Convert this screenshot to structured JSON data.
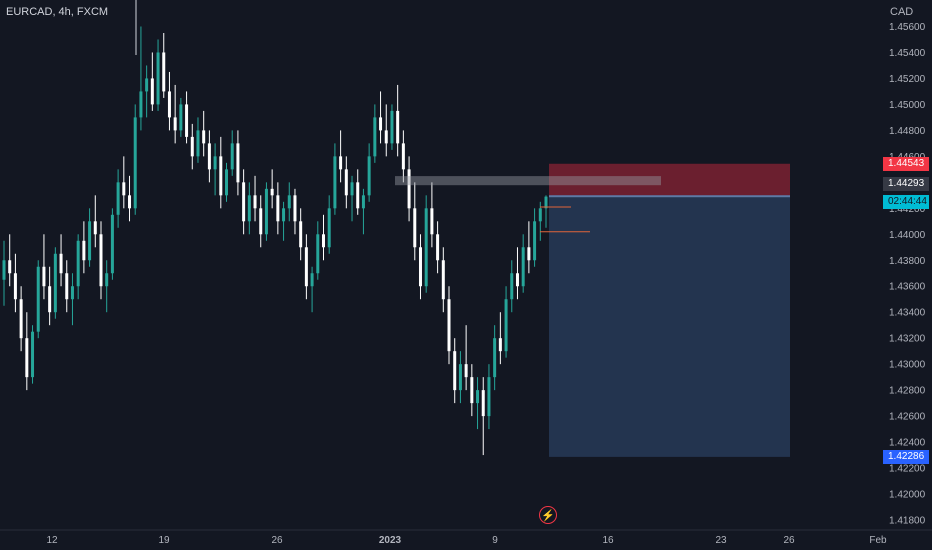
{
  "header": {
    "symbol_line": "EURCAD, 4h, FXCM",
    "currency": "CAD"
  },
  "price_axis": {
    "labels": [
      "1.45600",
      "1.45400",
      "1.45200",
      "1.45000",
      "1.44800",
      "1.44600",
      "1.44400",
      "1.44200",
      "1.44000",
      "1.43800",
      "1.43600",
      "1.43400",
      "1.43200",
      "1.43000",
      "1.42800",
      "1.42600",
      "1.42400",
      "1.42200",
      "1.42000",
      "1.41800"
    ]
  },
  "time_axis": {
    "labels": [
      "12",
      "19",
      "26",
      "2023",
      "9",
      "16",
      "23",
      "26",
      "Feb"
    ]
  },
  "price_tags": {
    "stop_loss": "1.44543",
    "current_price": "1.44293",
    "countdown": "02:44:44",
    "take_profit": "1.42286"
  },
  "alert_icon": "alert-clock-icon",
  "colors": {
    "background": "#131722",
    "up": "#26a69a",
    "down": "#ffffff",
    "stop_zone": "#7b2131",
    "target_zone": "#243652",
    "stop_tag": "#f23645",
    "price_tag": "#363a45",
    "countdown_tag": "#00bcd4",
    "target_tag": "#2962ff"
  },
  "chart_data": {
    "type": "candlestick",
    "symbol": "EURCAD",
    "timeframe": "4h",
    "ylim": [
      1.418,
      1.456
    ],
    "candles": [
      [
        1.4365,
        1.4395,
        1.4345,
        1.438
      ],
      [
        1.438,
        1.44,
        1.436,
        1.437
      ],
      [
        1.437,
        1.4385,
        1.434,
        1.435
      ],
      [
        1.435,
        1.436,
        1.431,
        1.432
      ],
      [
        1.432,
        1.434,
        1.428,
        1.429
      ],
      [
        1.429,
        1.433,
        1.4285,
        1.4325
      ],
      [
        1.4325,
        1.438,
        1.432,
        1.4375
      ],
      [
        1.4375,
        1.44,
        1.435,
        1.436
      ],
      [
        1.436,
        1.4375,
        1.433,
        1.434
      ],
      [
        1.434,
        1.439,
        1.4335,
        1.4385
      ],
      [
        1.4385,
        1.44,
        1.436,
        1.437
      ],
      [
        1.437,
        1.438,
        1.434,
        1.435
      ],
      [
        1.435,
        1.437,
        1.433,
        1.436
      ],
      [
        1.436,
        1.44,
        1.435,
        1.4395
      ],
      [
        1.4395,
        1.441,
        1.437,
        1.438
      ],
      [
        1.438,
        1.442,
        1.4375,
        1.441
      ],
      [
        1.441,
        1.443,
        1.439,
        1.44
      ],
      [
        1.44,
        1.441,
        1.435,
        1.436
      ],
      [
        1.436,
        1.438,
        1.434,
        1.437
      ],
      [
        1.437,
        1.442,
        1.4365,
        1.4415
      ],
      [
        1.4415,
        1.445,
        1.4405,
        1.444
      ],
      [
        1.444,
        1.446,
        1.442,
        1.443
      ],
      [
        1.443,
        1.4445,
        1.441,
        1.442
      ],
      [
        1.442,
        1.45,
        1.4415,
        1.449
      ],
      [
        1.449,
        1.456,
        1.448,
        1.451
      ],
      [
        1.451,
        1.453,
        1.449,
        1.452
      ],
      [
        1.452,
        1.454,
        1.4495,
        1.45
      ],
      [
        1.45,
        1.455,
        1.4495,
        1.454
      ],
      [
        1.454,
        1.4555,
        1.4505,
        1.451
      ],
      [
        1.451,
        1.4525,
        1.448,
        1.449
      ],
      [
        1.449,
        1.4515,
        1.447,
        1.448
      ],
      [
        1.448,
        1.4505,
        1.4475,
        1.45
      ],
      [
        1.45,
        1.451,
        1.447,
        1.4475
      ],
      [
        1.4475,
        1.4485,
        1.445,
        1.446
      ],
      [
        1.446,
        1.449,
        1.4455,
        1.448
      ],
      [
        1.448,
        1.4495,
        1.446,
        1.447
      ],
      [
        1.447,
        1.448,
        1.444,
        1.445
      ],
      [
        1.445,
        1.447,
        1.443,
        1.446
      ],
      [
        1.446,
        1.4475,
        1.442,
        1.443
      ],
      [
        1.443,
        1.4455,
        1.4425,
        1.445
      ],
      [
        1.445,
        1.448,
        1.4445,
        1.447
      ],
      [
        1.447,
        1.448,
        1.443,
        1.444
      ],
      [
        1.444,
        1.445,
        1.44,
        1.441
      ],
      [
        1.441,
        1.444,
        1.44,
        1.443
      ],
      [
        1.443,
        1.4445,
        1.441,
        1.442
      ],
      [
        1.442,
        1.443,
        1.439,
        1.44
      ],
      [
        1.44,
        1.444,
        1.4395,
        1.4435
      ],
      [
        1.4435,
        1.445,
        1.442,
        1.443
      ],
      [
        1.443,
        1.444,
        1.44,
        1.441
      ],
      [
        1.441,
        1.4425,
        1.4395,
        1.442
      ],
      [
        1.442,
        1.444,
        1.441,
        1.443
      ],
      [
        1.443,
        1.4435,
        1.44,
        1.441
      ],
      [
        1.441,
        1.442,
        1.438,
        1.439
      ],
      [
        1.439,
        1.44,
        1.435,
        1.436
      ],
      [
        1.436,
        1.4375,
        1.434,
        1.437
      ],
      [
        1.437,
        1.441,
        1.4365,
        1.44
      ],
      [
        1.44,
        1.4415,
        1.438,
        1.439
      ],
      [
        1.439,
        1.443,
        1.4385,
        1.442
      ],
      [
        1.442,
        1.447,
        1.4415,
        1.446
      ],
      [
        1.446,
        1.448,
        1.444,
        1.445
      ],
      [
        1.445,
        1.446,
        1.442,
        1.443
      ],
      [
        1.443,
        1.4445,
        1.441,
        1.444
      ],
      [
        1.444,
        1.445,
        1.4415,
        1.442
      ],
      [
        1.442,
        1.4435,
        1.44,
        1.443
      ],
      [
        1.443,
        1.447,
        1.4425,
        1.446
      ],
      [
        1.446,
        1.45,
        1.4455,
        1.449
      ],
      [
        1.449,
        1.451,
        1.447,
        1.448
      ],
      [
        1.448,
        1.45,
        1.446,
        1.447
      ],
      [
        1.447,
        1.45,
        1.4465,
        1.4495
      ],
      [
        1.4495,
        1.4515,
        1.446,
        1.447
      ],
      [
        1.447,
        1.448,
        1.444,
        1.445
      ],
      [
        1.445,
        1.446,
        1.441,
        1.442
      ],
      [
        1.442,
        1.444,
        1.438,
        1.439
      ],
      [
        1.439,
        1.44,
        1.435,
        1.436
      ],
      [
        1.436,
        1.443,
        1.4355,
        1.442
      ],
      [
        1.442,
        1.444,
        1.439,
        1.44
      ],
      [
        1.44,
        1.441,
        1.437,
        1.438
      ],
      [
        1.438,
        1.439,
        1.434,
        1.435
      ],
      [
        1.435,
        1.436,
        1.43,
        1.431
      ],
      [
        1.431,
        1.432,
        1.427,
        1.428
      ],
      [
        1.428,
        1.431,
        1.427,
        1.43
      ],
      [
        1.43,
        1.433,
        1.428,
        1.429
      ],
      [
        1.429,
        1.43,
        1.426,
        1.427
      ],
      [
        1.427,
        1.429,
        1.425,
        1.428
      ],
      [
        1.428,
        1.429,
        1.423,
        1.426
      ],
      [
        1.426,
        1.43,
        1.425,
        1.429
      ],
      [
        1.429,
        1.433,
        1.428,
        1.432
      ],
      [
        1.432,
        1.434,
        1.43,
        1.431
      ],
      [
        1.431,
        1.436,
        1.4305,
        1.435
      ],
      [
        1.435,
        1.438,
        1.434,
        1.437
      ],
      [
        1.437,
        1.439,
        1.435,
        1.436
      ],
      [
        1.436,
        1.44,
        1.4355,
        1.439
      ],
      [
        1.439,
        1.441,
        1.437,
        1.438
      ],
      [
        1.438,
        1.442,
        1.4375,
        1.441
      ],
      [
        1.441,
        1.4425,
        1.4395,
        1.442
      ],
      [
        1.442,
        1.443,
        1.4405,
        1.4429
      ]
    ],
    "stop_zone": [
      1.44293,
      1.44543
    ],
    "target_zone": [
      1.42286,
      1.44293
    ],
    "resistance_band": [
      1.44378,
      1.44448
    ]
  }
}
